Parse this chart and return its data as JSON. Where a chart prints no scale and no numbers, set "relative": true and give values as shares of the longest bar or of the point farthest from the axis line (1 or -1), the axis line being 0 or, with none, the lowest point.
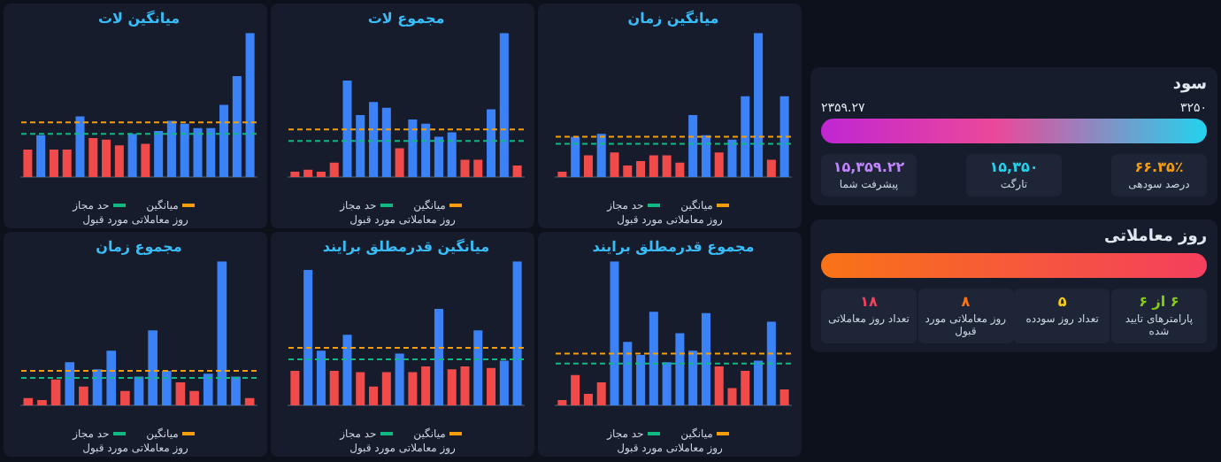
{
  "chart_data": [
    {
      "type": "bar",
      "title": "میانگین لات",
      "relative": true,
      "categories": [
        null,
        null,
        null,
        null,
        null,
        null,
        null,
        null,
        null,
        null,
        null,
        null,
        null,
        null,
        null,
        null,
        null,
        null
      ],
      "values": [
        0.19,
        0.29,
        0.19,
        0.19,
        0.42,
        0.27,
        0.26,
        0.22,
        0.3,
        0.23,
        0.32,
        0.39,
        0.37,
        0.34,
        0.34,
        0.5,
        0.7,
        1
      ],
      "colors": [
        "#f04a4a",
        "#3b82f6",
        "#f04a4a",
        "#f04a4a",
        "#3b82f6",
        "#f04a4a",
        "#f04a4a",
        "#f04a4a",
        "#3b82f6",
        "#f04a4a",
        "#3b82f6",
        "#3b82f6",
        "#3b82f6",
        "#3b82f6",
        "#3b82f6",
        "#3b82f6",
        "#3b82f6",
        "#3b82f6"
      ],
      "legend": "bottom",
      "ref_lines": [
        {
          "axis": "y",
          "value": 0.38,
          "label": "میانگین",
          "color": "#f59e0b",
          "line_style": "dashed"
        },
        {
          "axis": "y",
          "value": 0.3,
          "label": "حد مجاز",
          "color": "#10b981",
          "line_style": "dashed"
        }
      ],
      "annotations": [
        "روز معاملاتی مورد قبول"
      ]
    },
    {
      "type": "bar",
      "title": "مجموع لات",
      "relative": true,
      "categories": [
        null,
        null,
        null,
        null,
        null,
        null,
        null,
        null,
        null,
        null,
        null,
        null,
        null,
        null,
        null,
        null,
        null,
        null
      ],
      "values": [
        0.02,
        0.05,
        0.03,
        0.1,
        0.67,
        0.43,
        0.52,
        0.48,
        0.2,
        0.4,
        0.37,
        0.28,
        0.31,
        0.12,
        0.12,
        0.47,
        1,
        0.08
      ],
      "colors": [
        "#f04a4a",
        "#f04a4a",
        "#f04a4a",
        "#f04a4a",
        "#3b82f6",
        "#3b82f6",
        "#3b82f6",
        "#3b82f6",
        "#f04a4a",
        "#3b82f6",
        "#3b82f6",
        "#3b82f6",
        "#3b82f6",
        "#f04a4a",
        "#f04a4a",
        "#3b82f6",
        "#3b82f6",
        "#f04a4a"
      ],
      "legend": "bottom",
      "ref_lines": [
        {
          "axis": "y",
          "value": 0.33,
          "label": "میانگین",
          "color": "#f59e0b",
          "line_style": "dashed"
        },
        {
          "axis": "y",
          "value": 0.25,
          "label": "حد مجاز",
          "color": "#10b981",
          "line_style": "dashed"
        }
      ],
      "annotations": [
        "روز معاملاتی مورد قبول"
      ]
    },
    {
      "type": "bar",
      "title": "میانگین زمان",
      "relative": true,
      "categories": [
        null,
        null,
        null,
        null,
        null,
        null,
        null,
        null,
        null,
        null,
        null,
        null,
        null,
        null,
        null,
        null,
        null,
        null
      ],
      "values": [
        0.02,
        0.28,
        0.15,
        0.3,
        0.17,
        0.08,
        0.11,
        0.15,
        0.15,
        0.1,
        0.43,
        0.29,
        0.17,
        0.26,
        0.56,
        1,
        0.12,
        0.56
      ],
      "colors": [
        "#f04a4a",
        "#3b82f6",
        "#f04a4a",
        "#3b82f6",
        "#f04a4a",
        "#f04a4a",
        "#f04a4a",
        "#f04a4a",
        "#f04a4a",
        "#f04a4a",
        "#3b82f6",
        "#3b82f6",
        "#f04a4a",
        "#3b82f6",
        "#3b82f6",
        "#3b82f6",
        "#f04a4a",
        "#3b82f6"
      ],
      "legend": "bottom",
      "ref_lines": [
        {
          "axis": "y",
          "value": 0.28,
          "label": "میانگین",
          "color": "#f59e0b",
          "line_style": "dashed"
        },
        {
          "axis": "y",
          "value": 0.23,
          "label": "حد مجاز",
          "color": "#10b981",
          "line_style": "dashed"
        }
      ],
      "annotations": [
        "روز معاملاتی مورد قبول"
      ]
    },
    {
      "type": "bar",
      "title": "مجموع زمان",
      "relative": true,
      "categories": [
        null,
        null,
        null,
        null,
        null,
        null,
        null,
        null,
        null,
        null,
        null,
        null,
        null,
        null,
        null,
        null,
        null
      ],
      "values": [
        0.05,
        0.02,
        0.18,
        0.3,
        0.13,
        0.25,
        0.38,
        0.1,
        0.2,
        0.52,
        0.24,
        0.16,
        0.1,
        0.22,
        1,
        0.2,
        0.05
      ],
      "colors": [
        "#f04a4a",
        "#f04a4a",
        "#f04a4a",
        "#3b82f6",
        "#f04a4a",
        "#3b82f6",
        "#3b82f6",
        "#f04a4a",
        "#3b82f6",
        "#3b82f6",
        "#3b82f6",
        "#f04a4a",
        "#f04a4a",
        "#3b82f6",
        "#3b82f6",
        "#3b82f6",
        "#f04a4a"
      ],
      "legend": "bottom",
      "ref_lines": [
        {
          "axis": "y",
          "value": 0.24,
          "label": "میانگین",
          "color": "#f59e0b",
          "line_style": "dashed"
        },
        {
          "axis": "y",
          "value": 0.19,
          "label": "حد مجاز",
          "color": "#10b981",
          "line_style": "dashed"
        }
      ],
      "annotations": [
        "روز معاملاتی مورد قبول"
      ]
    },
    {
      "type": "bar",
      "title": "میانگین قدرمطلق برایند",
      "relative": true,
      "categories": [
        null,
        null,
        null,
        null,
        null,
        null,
        null,
        null,
        null,
        null,
        null,
        null,
        null,
        null,
        null,
        null,
        null,
        null
      ],
      "values": [
        0.24,
        0.94,
        0.38,
        0.24,
        0.49,
        0.23,
        0.13,
        0.23,
        0.36,
        0.23,
        0.27,
        0.67,
        0.25,
        0.27,
        0.52,
        0.26,
        0.31,
        1
      ],
      "colors": [
        "#f04a4a",
        "#3b82f6",
        "#3b82f6",
        "#f04a4a",
        "#3b82f6",
        "#f04a4a",
        "#f04a4a",
        "#f04a4a",
        "#3b82f6",
        "#f04a4a",
        "#f04a4a",
        "#3b82f6",
        "#f04a4a",
        "#f04a4a",
        "#3b82f6",
        "#f04a4a",
        "#3b82f6",
        "#3b82f6"
      ],
      "legend": "bottom",
      "ref_lines": [
        {
          "axis": "y",
          "value": 0.4,
          "label": "میانگین",
          "color": "#f59e0b",
          "line_style": "dashed"
        },
        {
          "axis": "y",
          "value": 0.32,
          "label": "حد مجاز",
          "color": "#10b981",
          "line_style": "dashed"
        }
      ],
      "annotations": [
        "روز معاملاتی مورد قبول"
      ]
    },
    {
      "type": "bar",
      "title": "مجموع قدرمطلق برایند",
      "relative": true,
      "categories": [
        null,
        null,
        null,
        null,
        null,
        null,
        null,
        null,
        null,
        null,
        null,
        null,
        null,
        null,
        null,
        null,
        null,
        null
      ],
      "values": [
        0.02,
        0.21,
        0.08,
        0.16,
        1,
        0.44,
        0.35,
        0.65,
        0.3,
        0.5,
        0.38,
        0.64,
        0.27,
        0.12,
        0.24,
        0.31,
        0.58,
        0.11
      ],
      "colors": [
        "#f04a4a",
        "#f04a4a",
        "#f04a4a",
        "#f04a4a",
        "#3b82f6",
        "#3b82f6",
        "#3b82f6",
        "#3b82f6",
        "#3b82f6",
        "#3b82f6",
        "#3b82f6",
        "#3b82f6",
        "#f04a4a",
        "#f04a4a",
        "#f04a4a",
        "#3b82f6",
        "#3b82f6",
        "#f04a4a"
      ],
      "legend": "bottom",
      "ref_lines": [
        {
          "axis": "y",
          "value": 0.36,
          "label": "میانگین",
          "color": "#f59e0b",
          "line_style": "dashed"
        },
        {
          "axis": "y",
          "value": 0.29,
          "label": "حد مجاز",
          "color": "#10b981",
          "line_style": "dashed"
        }
      ],
      "annotations": [
        "روز معاملاتی مورد قبول"
      ]
    },
    {
      "type": "other",
      "title": "سود",
      "annotations": [
        "۲۳۵۹.۲۷",
        "۳۲۵۰",
        "۱۵,۳۵۹.۲۲",
        "پیشرفت شما",
        "۱۵,۳۵۰",
        "تارگت",
        "۶۶.۳۵٪",
        "درصد سودهی"
      ]
    },
    {
      "type": "other",
      "title": "روز معاملاتی",
      "annotations": [
        "۱۸",
        "تعداد روز معاملاتی",
        "۸",
        "روز معاملاتی مورد قبول",
        "۵",
        "تعداد روز سودده",
        "۶ از ۶",
        "پارامترهای تایید شده"
      ]
    }
  ]
}
